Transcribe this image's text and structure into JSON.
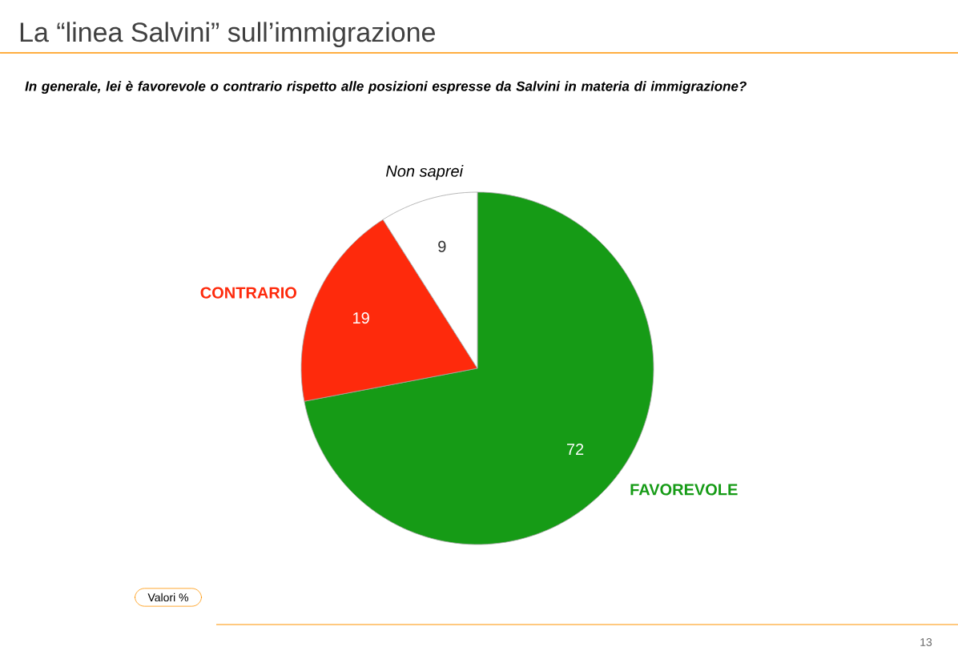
{
  "chart_data": {
    "type": "pie",
    "title": "La “linea Salvini” sull’immigrazione",
    "subtitle": "In generale, lei è favorevole o contrario rispetto alle posizioni espresse da Salvini in materia di immigrazione?",
    "categories": [
      "FAVOREVOLE",
      "CONTRARIO",
      "Non saprei"
    ],
    "values": [
      72,
      19,
      9
    ],
    "colors": [
      "#169b16",
      "#fe2a0c",
      "#ffffff"
    ],
    "data_labels": true,
    "annotations": [
      "Valori %",
      "13"
    ]
  }
}
